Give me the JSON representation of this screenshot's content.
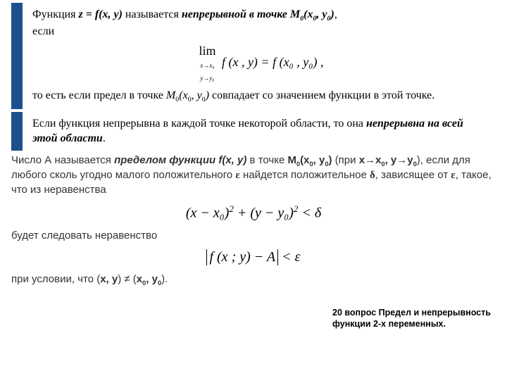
{
  "block1": {
    "t1a": "Функция ",
    "t1b": "z = f(x, y)",
    "t1c": " называется ",
    "t1d": "непрерывной в точке M",
    "t1e": "(x",
    "t1f": ", y",
    "t1g": ")",
    "t1h": ",",
    "t2": "если",
    "formula_lim": "lim",
    "formula_cond1": "x→x₀",
    "formula_cond2": "y→y₀",
    "formula_body": "f (x , y) = f (x₀ , y₀) ,",
    "t3a": "то есть если предел в точке ",
    "t3b": "M",
    "t3c": "(x",
    "t3d": ", y",
    "t3e": ")",
    "t3f": " совпадает со значением функции в этой точке."
  },
  "block2": {
    "t1": "Если функция непрерывна в каждой точке некоторой области, то она ",
    "t2": "непрерывна на всей этой области",
    "t3": "."
  },
  "plain": {
    "p1a": "Число А называется ",
    "p1b": "пределом функции f(x, y)",
    "p1c": " в точке ",
    "p1d": "M",
    "p1e": "(x",
    "p1f": ", y",
    "p1g": ")",
    "p2a": "(при ",
    "p2b": "x→x",
    "p2c": ",  y→y",
    "p2d": "), если для любого сколь угодно малого положительного ",
    "p2e": "ε",
    "p2f": " найдется положительное ",
    "p2g": "δ",
    "p2h": ", зависящее от ",
    "p2i": "ε",
    "p2j": ", такое, что из неравенства",
    "ineq1a": "(x − x₀)",
    "ineq1b": " + (y − y₀)",
    "ineq1c": " < δ",
    "p3": "будет следовать неравенство",
    "ineq2a": "f (x ; y) − A",
    "ineq2b": " < ε",
    "p4a": "при условии, что (",
    "p4b": "x, y",
    "p4c": ") ≠ (",
    "p4d": "x",
    "p4e": ", y",
    "p4f": ")."
  },
  "footnote": "20 вопрос Предел и непрерывность функции 2-х переменных.",
  "sub0": "0",
  "sup2": "2"
}
